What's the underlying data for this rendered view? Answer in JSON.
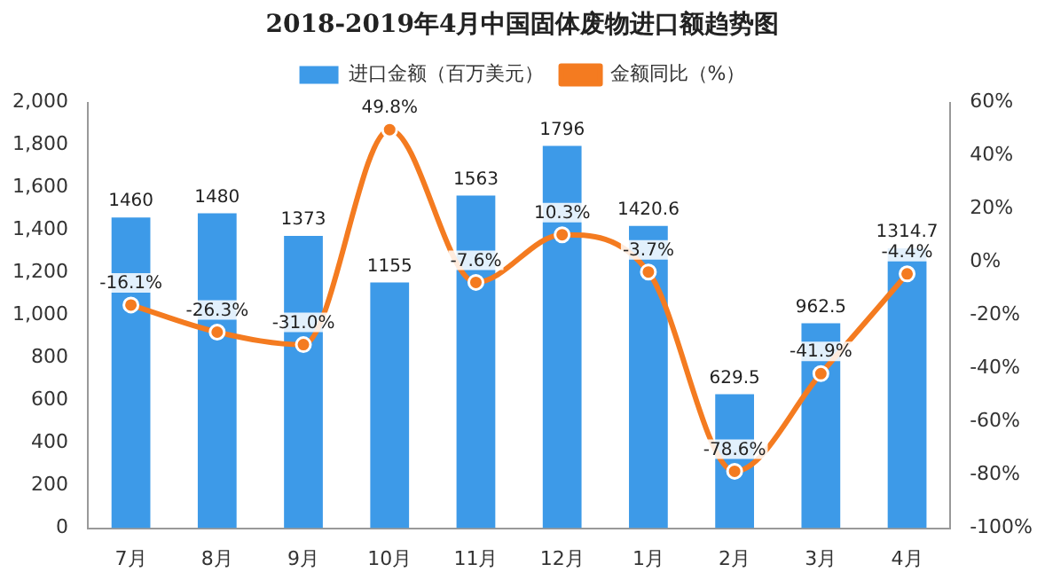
{
  "chart_data": {
    "type": "bar",
    "title": "2018-2019年4月中国固体废物进口额趋势图",
    "categories": [
      "7月",
      "8月",
      "9月",
      "10月",
      "11月",
      "12月",
      "1月",
      "2月",
      "3月",
      "4月"
    ],
    "series": [
      {
        "name": "进口金额（百万美元）",
        "color": "#3d9ae8",
        "values": [
          1460,
          1480,
          1373,
          1155,
          1563,
          1796,
          1420.6,
          629.5,
          962.5,
          1314.7
        ],
        "value_labels": [
          "1460",
          "1480",
          "1373",
          "1155",
          "1563",
          "1796",
          "1420.6",
          "629.5",
          "962.5",
          "1314.7"
        ]
      },
      {
        "name": "金额同比（%）",
        "type": "line",
        "axis": "y2",
        "color": "#f47b20",
        "values": [
          -16.1,
          -26.3,
          -31.0,
          49.8,
          -7.6,
          10.3,
          -3.7,
          -78.6,
          -41.9,
          -4.4
        ],
        "value_labels": [
          "-16.1%",
          "-26.3%",
          "-31.0%",
          "49.8%",
          "-7.6%",
          "10.3%",
          "-3.7%",
          "-78.6%",
          "-41.9%",
          "-4.4%"
        ]
      }
    ],
    "ylim": [
      0,
      2000
    ],
    "yticks": [
      {
        "value": 0,
        "label": "0"
      },
      {
        "value": 200,
        "label": "200"
      },
      {
        "value": 400,
        "label": "400"
      },
      {
        "value": 600,
        "label": "600"
      },
      {
        "value": 800,
        "label": "800"
      },
      {
        "value": 1000,
        "label": "1,000"
      },
      {
        "value": 1200,
        "label": "1,200"
      },
      {
        "value": 1400,
        "label": "1,400"
      },
      {
        "value": 1600,
        "label": "1,600"
      },
      {
        "value": 1800,
        "label": "1,800"
      },
      {
        "value": 2000,
        "label": "2,000"
      }
    ],
    "y2lim": [
      -100,
      60
    ],
    "y2ticks": [
      {
        "value": -100,
        "label": "-100%"
      },
      {
        "value": -80,
        "label": "-80%"
      },
      {
        "value": -60,
        "label": "-60%"
      },
      {
        "value": -40,
        "label": "-40%"
      },
      {
        "value": -20,
        "label": "-20%"
      },
      {
        "value": 0,
        "label": "0%"
      },
      {
        "value": 20,
        "label": "20%"
      },
      {
        "value": 40,
        "label": "40%"
      },
      {
        "value": 60,
        "label": "60%"
      }
    ],
    "legend": "top",
    "marker": "circle",
    "line_style": "solid",
    "grid": false
  }
}
